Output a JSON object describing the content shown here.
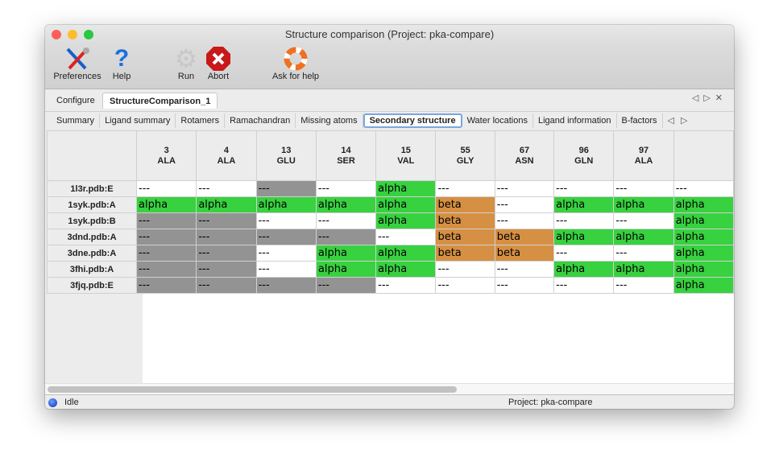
{
  "window": {
    "title": "Structure comparison (Project: pka-compare)"
  },
  "toolbar": {
    "items": [
      {
        "label": "Preferences",
        "icon": "tools-icon"
      },
      {
        "label": "Help",
        "icon": "question-icon"
      },
      {
        "label": "Run",
        "icon": "gear-icon"
      },
      {
        "label": "Abort",
        "icon": "abort-icon"
      },
      {
        "label": "Ask for help",
        "icon": "lifebuoy-icon"
      }
    ]
  },
  "tabs": [
    {
      "label": "Configure"
    },
    {
      "label": "StructureComparison_1",
      "active": true
    }
  ],
  "subtabs": [
    {
      "label": "Summary"
    },
    {
      "label": "Ligand summary"
    },
    {
      "label": "Rotamers"
    },
    {
      "label": "Ramachandran"
    },
    {
      "label": "Missing atoms"
    },
    {
      "label": "Secondary structure",
      "active": true
    },
    {
      "label": "Water locations"
    },
    {
      "label": "Ligand information"
    },
    {
      "label": "B-factors"
    }
  ],
  "colors": {
    "alpha": "#38d140",
    "beta": "#d69043",
    "missing": "#939393"
  },
  "table": {
    "columns": [
      {
        "num": "3",
        "res": "ALA"
      },
      {
        "num": "4",
        "res": "ALA"
      },
      {
        "num": "13",
        "res": "GLU"
      },
      {
        "num": "14",
        "res": "SER"
      },
      {
        "num": "15",
        "res": "VAL"
      },
      {
        "num": "55",
        "res": "GLY"
      },
      {
        "num": "67",
        "res": "ASN"
      },
      {
        "num": "96",
        "res": "GLN"
      },
      {
        "num": "97",
        "res": "ALA"
      },
      {
        "num": "",
        "res": ""
      }
    ],
    "rows": [
      {
        "label": "1l3r.pdb:E",
        "cells": [
          "---",
          "---",
          "x",
          "---",
          "alpha",
          "---",
          "---",
          "---",
          "---",
          "---"
        ]
      },
      {
        "label": "1syk.pdb:A",
        "cells": [
          "alpha",
          "alpha",
          "alpha",
          "alpha",
          "alpha",
          "beta",
          "---",
          "alpha",
          "alpha",
          "alpha"
        ]
      },
      {
        "label": "1syk.pdb:B",
        "cells": [
          "x",
          "x",
          "---",
          "---",
          "alpha",
          "beta",
          "---",
          "---",
          "---",
          "alpha"
        ]
      },
      {
        "label": "3dnd.pdb:A",
        "cells": [
          "x",
          "x",
          "x",
          "x",
          "---",
          "beta",
          "beta",
          "alpha",
          "alpha",
          "alpha"
        ]
      },
      {
        "label": "3dne.pdb:A",
        "cells": [
          "x",
          "x",
          "---",
          "alpha",
          "alpha",
          "beta",
          "beta",
          "---",
          "---",
          "alpha"
        ]
      },
      {
        "label": "3fhi.pdb:A",
        "cells": [
          "x",
          "x",
          "---",
          "alpha",
          "alpha",
          "---",
          "---",
          "alpha",
          "alpha",
          "alpha"
        ]
      },
      {
        "label": "3fjq.pdb:E",
        "cells": [
          "x",
          "x",
          "x",
          "x",
          "---",
          "---",
          "---",
          "---",
          "---",
          "alpha"
        ]
      }
    ],
    "missing_text": "---"
  },
  "status": {
    "state": "Idle",
    "project": "Project: pka-compare"
  }
}
